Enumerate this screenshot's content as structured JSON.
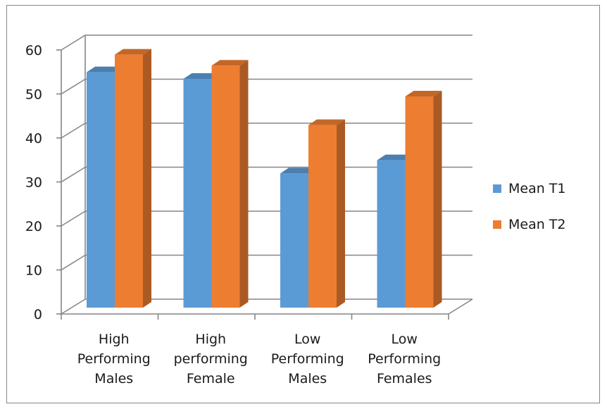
{
  "chart_data": {
    "type": "bar",
    "title": "",
    "xlabel": "",
    "ylabel": "",
    "ylim": [
      0,
      60
    ],
    "yticks": [
      0,
      10,
      20,
      30,
      40,
      50,
      60
    ],
    "grid": true,
    "legend_position": "right",
    "categories": [
      [
        "High",
        "Performing",
        "Males"
      ],
      [
        "High",
        "performing",
        "Female"
      ],
      [
        "Low",
        "Performing",
        "Males"
      ],
      [
        "Low",
        "Performing",
        "Females"
      ]
    ],
    "series": [
      {
        "name": "Mean T1",
        "color": "#5b9bd5",
        "values": [
          53.5,
          52,
          30.5,
          33.5
        ]
      },
      {
        "name": "Mean T2",
        "color": "#ed7d31",
        "values": [
          57.5,
          55,
          41.5,
          48
        ]
      }
    ]
  }
}
